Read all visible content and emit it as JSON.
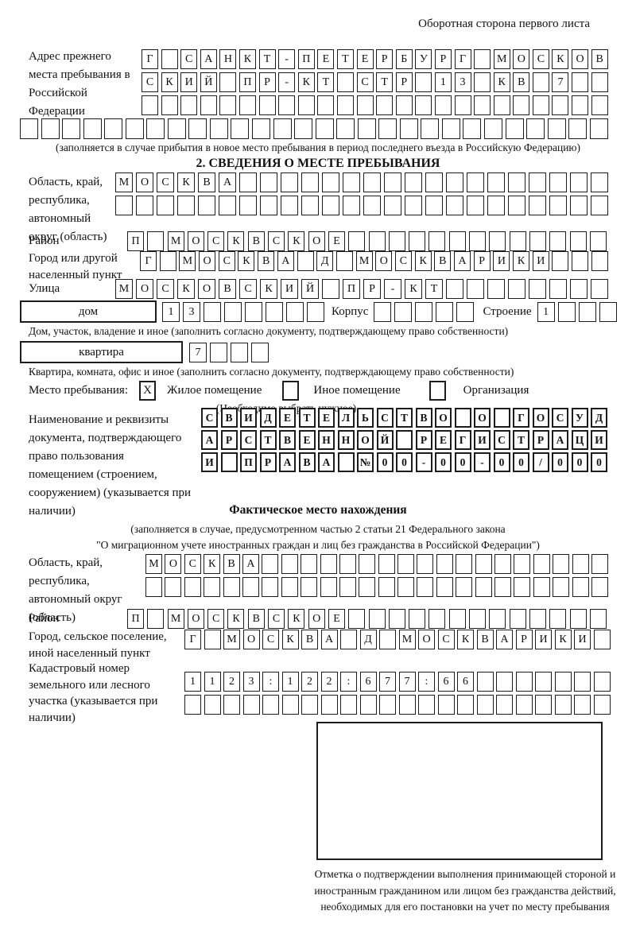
{
  "header": {
    "note": "Оборотная сторона первого листа"
  },
  "prev_address": {
    "label": "Адрес прежнего места пребывания в Российской Федерации",
    "row1": "Г САНКТ-ПЕТЕРБУРГ МОСКОВ",
    "row2": "СКИЙ ПР-КТ СТР 13 КВ 7",
    "row3": "",
    "row4": "",
    "note": "(заполняется в случае прибытия в новое место пребывания в период последнего въезда в Российскую Федерацию)"
  },
  "section2": {
    "title": "2. СВЕДЕНИЯ О МЕСТЕ ПРЕБЫВАНИЯ",
    "region": {
      "label": "Область, край, республика, автономный округ (область)",
      "row1": "МОСКВА",
      "row2": ""
    },
    "district": {
      "label": "Район",
      "row": "П МОСКВСКОЕ"
    },
    "city": {
      "label": "Город или другой населенный пункт",
      "row": "Г МОСКВА Д МОСКВАРИКИ"
    },
    "street": {
      "label": "Улица",
      "row": "МОСКОВСКИЙ ПР-КТ"
    },
    "house": {
      "box_label": "дом",
      "cells": "13",
      "korpus_label": "Корпус",
      "korpus_cells": "",
      "stroenie_label": "Строение",
      "stroenie_cells": "1",
      "note": "Дом, участок, владение и иное (заполнить согласно документу, подтверждающему право собственности)"
    },
    "apartment": {
      "box_label": "квартира",
      "cells": "7",
      "note": "Квартира, комната, офис и иное (заполнить согласно документу, подтверждающему право собственности)"
    },
    "stay": {
      "label": "Место пребывания:",
      "options": [
        {
          "mark": "X",
          "label": "Жилое помещение"
        },
        {
          "mark": "",
          "label": "Иное помещение"
        },
        {
          "mark": "",
          "label": "Организация"
        }
      ],
      "note": "(Необходимо выбрать нужное)"
    },
    "document": {
      "label": "Наименование и реквизиты документа, подтверждающего право пользования помещением (строением, сооружением) (указывается при наличии)",
      "row1": "СВИДЕТЕЛЬСТВО О ГОСУД",
      "row2": "АРСТВЕННОЙ РЕГИСТРАЦИ",
      "row3": "И ПРАВА №00-00-00/000"
    }
  },
  "actual_location": {
    "title": "Фактическое место нахождения",
    "note1": "(заполняется в случае, предусмотренном частью 2 статьи 21 Федерального закона",
    "note2": "\"О миграционном учете иностранных граждан и лиц без гражданства в Российской Федерации\")",
    "region": {
      "label": "Область, край, республика, автономный округ (область)",
      "row1": "МОСКВА",
      "row2": ""
    },
    "district": {
      "label": "Район",
      "row": "П МОСКВСКОЕ"
    },
    "city": {
      "label": "Город, сельское поселение, иной населенный пункт",
      "row": "Г МОСКВА Д МОСКВАРИКИ"
    },
    "cadastral": {
      "label": "Кадастровый номер земельного или лесного участка (указывается при наличии)",
      "row1": "1123:122:677:66",
      "row2": ""
    }
  },
  "stamp": {
    "caption": "Отметка о подтверждении выполнения принимающей стороной и иностранным гражданином или лицом без гражданства действий, необходимых для его постановки на учет по месту пребывания"
  }
}
